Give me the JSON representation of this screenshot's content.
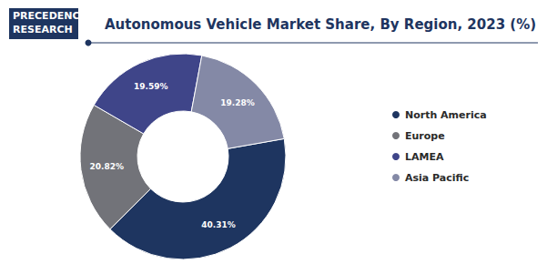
{
  "chart_data": {
    "type": "pie",
    "title": "Autonomous Vehicle Market Share, By Region, 2023 (%)",
    "logo": [
      "PRECEDENCE",
      "RESEARCH"
    ],
    "categories": [
      "North America",
      "Europe",
      "LAMEA",
      "Asia Pacific"
    ],
    "values": [
      40.31,
      20.82,
      19.59,
      19.28
    ],
    "value_labels": [
      "40.31%",
      "20.82%",
      "19.59%",
      "19.28%"
    ],
    "colors": [
      "#1e3560",
      "#727379",
      "#3f4589",
      "#8489a6"
    ],
    "data_labels": true,
    "legend": "right"
  }
}
